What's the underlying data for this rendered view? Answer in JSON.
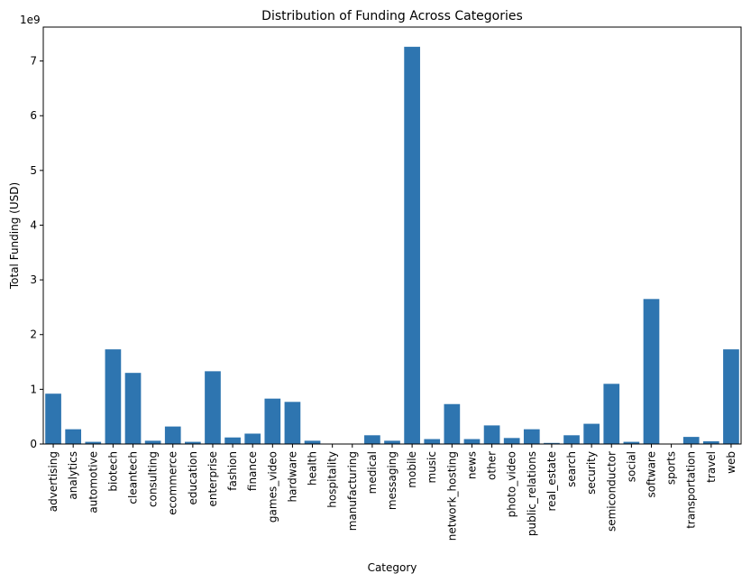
{
  "chart_data": {
    "type": "bar",
    "title": "Distribution of Funding Across Categories",
    "xlabel": "Category",
    "ylabel": "Total Funding (USD)",
    "y_scale_label": "1e9",
    "ylim": [
      0,
      7.62
    ],
    "yticks": [
      0,
      1,
      2,
      3,
      4,
      5,
      6,
      7
    ],
    "bar_color": "#2e75b0",
    "grid": false,
    "categories": [
      "advertising",
      "analytics",
      "automotive",
      "biotech",
      "cleantech",
      "consulting",
      "ecommerce",
      "education",
      "enterprise",
      "fashion",
      "finance",
      "games_video",
      "hardware",
      "health",
      "hospitality",
      "manufacturing",
      "medical",
      "messaging",
      "mobile",
      "music",
      "network_hosting",
      "news",
      "other",
      "photo_video",
      "public_relations",
      "real_estate",
      "search",
      "security",
      "semiconductor",
      "social",
      "software",
      "sports",
      "transportation",
      "travel",
      "web"
    ],
    "values": [
      0.92,
      0.27,
      0.04,
      1.73,
      1.3,
      0.06,
      0.32,
      0.04,
      1.33,
      0.12,
      0.19,
      0.83,
      0.77,
      0.06,
      0.0,
      0.0,
      0.16,
      0.06,
      7.26,
      0.09,
      0.73,
      0.09,
      0.34,
      0.11,
      0.27,
      0.02,
      0.16,
      0.37,
      1.1,
      0.04,
      2.65,
      0.0,
      0.13,
      0.05,
      1.73
    ]
  }
}
